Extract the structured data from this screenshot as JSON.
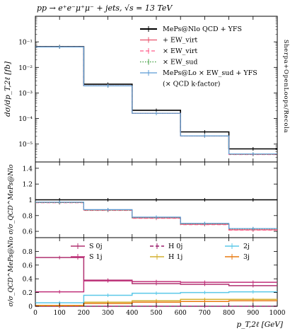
{
  "header": {
    "process": "pp → e⁺e⁻μ⁺μ⁻ + jets, √s = 13 TeV",
    "side_label": "Sherpa+OpenLoops/Recola"
  },
  "colors": {
    "qcd_yfs": "#000000",
    "plus_ew_virt": "#e8506a",
    "times_ew_virt": "#ff5c8a",
    "times_ew_sud": "#3b9c3b",
    "mepslo": "#5b9bd5",
    "S0j": "#b03070",
    "S1j": "#c0307a",
    "H0j": "#9a1a6a",
    "H1j": "#d4b030",
    "2j": "#5bc8e8",
    "3j": "#e87a10"
  },
  "legend_top": [
    {
      "label": "MePs@Nlo QCD + YFS",
      "key": "qcd_yfs",
      "style": "solid"
    },
    {
      "label": "+ EW_virt",
      "key": "plus_ew_virt",
      "style": "solid"
    },
    {
      "label": "× EW_virt",
      "key": "times_ew_virt",
      "style": "dashed"
    },
    {
      "label": "× EW_sud",
      "key": "times_ew_sud",
      "style": "dotted"
    },
    {
      "label": "MePs@Lo × EW_sud + YFS",
      "key": "mepslo",
      "style": "solid"
    },
    {
      "label": "(× QCD k-factor)",
      "key": "",
      "style": "none"
    }
  ],
  "legend_bottom": [
    {
      "label": "S 0j",
      "key": "S0j",
      "style": "solid"
    },
    {
      "label": "H 0j",
      "key": "H0j",
      "style": "dashed"
    },
    {
      "label": "2j",
      "key": "2j",
      "style": "solid"
    },
    {
      "label": "S 1j",
      "key": "S1j",
      "style": "solid"
    },
    {
      "label": "H 1j",
      "key": "H1j",
      "style": "solid"
    },
    {
      "label": "3j",
      "key": "3j",
      "style": "solid"
    }
  ],
  "chart_data": [
    {
      "type": "line",
      "panel": "main",
      "ylabel": "dσ/dp_T,2ℓ [fb]",
      "yscale": "log",
      "ylim": [
        2e-06,
        1
      ],
      "y_ticks": [
        "10⁻⁵",
        "10⁻⁴",
        "10⁻³",
        "10⁻²",
        "10⁻¹"
      ],
      "bin_edges": [
        0,
        200,
        400,
        600,
        800,
        1000
      ],
      "series": [
        {
          "name": "MePs@Nlo QCD + YFS",
          "values": [
            0.065,
            0.0022,
            0.00021,
            3e-05,
            6.5e-06
          ]
        },
        {
          "name": "+ EW_virt",
          "values": [
            0.063,
            0.0019,
            0.00016,
            2.1e-05,
            4e-06
          ]
        },
        {
          "name": "× EW_virt",
          "values": [
            0.063,
            0.0019,
            0.00016,
            2.1e-05,
            3.9e-06
          ]
        },
        {
          "name": "× EW_sud",
          "values": [
            0.063,
            0.0019,
            0.00016,
            2.1e-05,
            4e-06
          ]
        },
        {
          "name": "MePs@Lo × EW_sud + YFS",
          "values": [
            0.063,
            0.0019,
            0.00016,
            2.1e-05,
            4.1e-06
          ]
        }
      ]
    },
    {
      "type": "line",
      "panel": "ratio",
      "ylabel": "σ/σ_QCD^MePs@Nlo",
      "ylim": [
        0.52,
        1.48
      ],
      "y_ticks": [
        "0.6",
        "0.8",
        "1",
        "1.2",
        "1.4"
      ],
      "bin_edges": [
        0,
        200,
        400,
        600,
        800,
        1000
      ],
      "series": [
        {
          "name": "MePs@Nlo QCD + YFS",
          "values": [
            1.0,
            1.0,
            1.0,
            1.0,
            1.0
          ]
        },
        {
          "name": "+ EW_virt",
          "values": [
            0.965,
            0.87,
            0.77,
            0.69,
            0.62
          ]
        },
        {
          "name": "× EW_virt",
          "values": [
            0.962,
            0.865,
            0.765,
            0.685,
            0.615
          ]
        },
        {
          "name": "× EW_sud",
          "values": [
            0.965,
            0.87,
            0.775,
            0.695,
            0.63
          ]
        },
        {
          "name": "MePs@Lo × EW_sud + YFS",
          "values": [
            0.97,
            0.875,
            0.78,
            0.7,
            0.635
          ]
        }
      ]
    },
    {
      "type": "line",
      "panel": "fractions",
      "ylabel": "σ/σ_QCD^MePs@Nlo",
      "xlabel": "p_T,2ℓ [GeV]",
      "ylim": [
        0,
        1.0
      ],
      "y_ticks": [
        "0",
        "0.2",
        "0.4",
        "0.6",
        "0.8"
      ],
      "x_ticks": [
        "0",
        "100",
        "200",
        "300",
        "400",
        "500",
        "600",
        "700",
        "800",
        "900",
        "1000"
      ],
      "bin_edges": [
        0,
        200,
        400,
        600,
        800,
        1000
      ],
      "series": [
        {
          "name": "S 0j",
          "values": [
            0.71,
            0.38,
            0.33,
            0.32,
            0.3
          ]
        },
        {
          "name": "S 1j",
          "values": [
            0.21,
            0.37,
            0.36,
            0.35,
            0.35
          ]
        },
        {
          "name": "H 0j",
          "values": [
            0.0,
            0.0,
            0.0,
            0.0,
            0.0
          ]
        },
        {
          "name": "H 1j",
          "values": [
            0.01,
            0.06,
            0.08,
            0.1,
            0.1
          ]
        },
        {
          "name": "2j",
          "values": [
            0.05,
            0.16,
            0.19,
            0.2,
            0.21
          ]
        },
        {
          "name": "3j",
          "values": [
            0.01,
            0.04,
            0.06,
            0.07,
            0.08
          ]
        }
      ]
    }
  ]
}
